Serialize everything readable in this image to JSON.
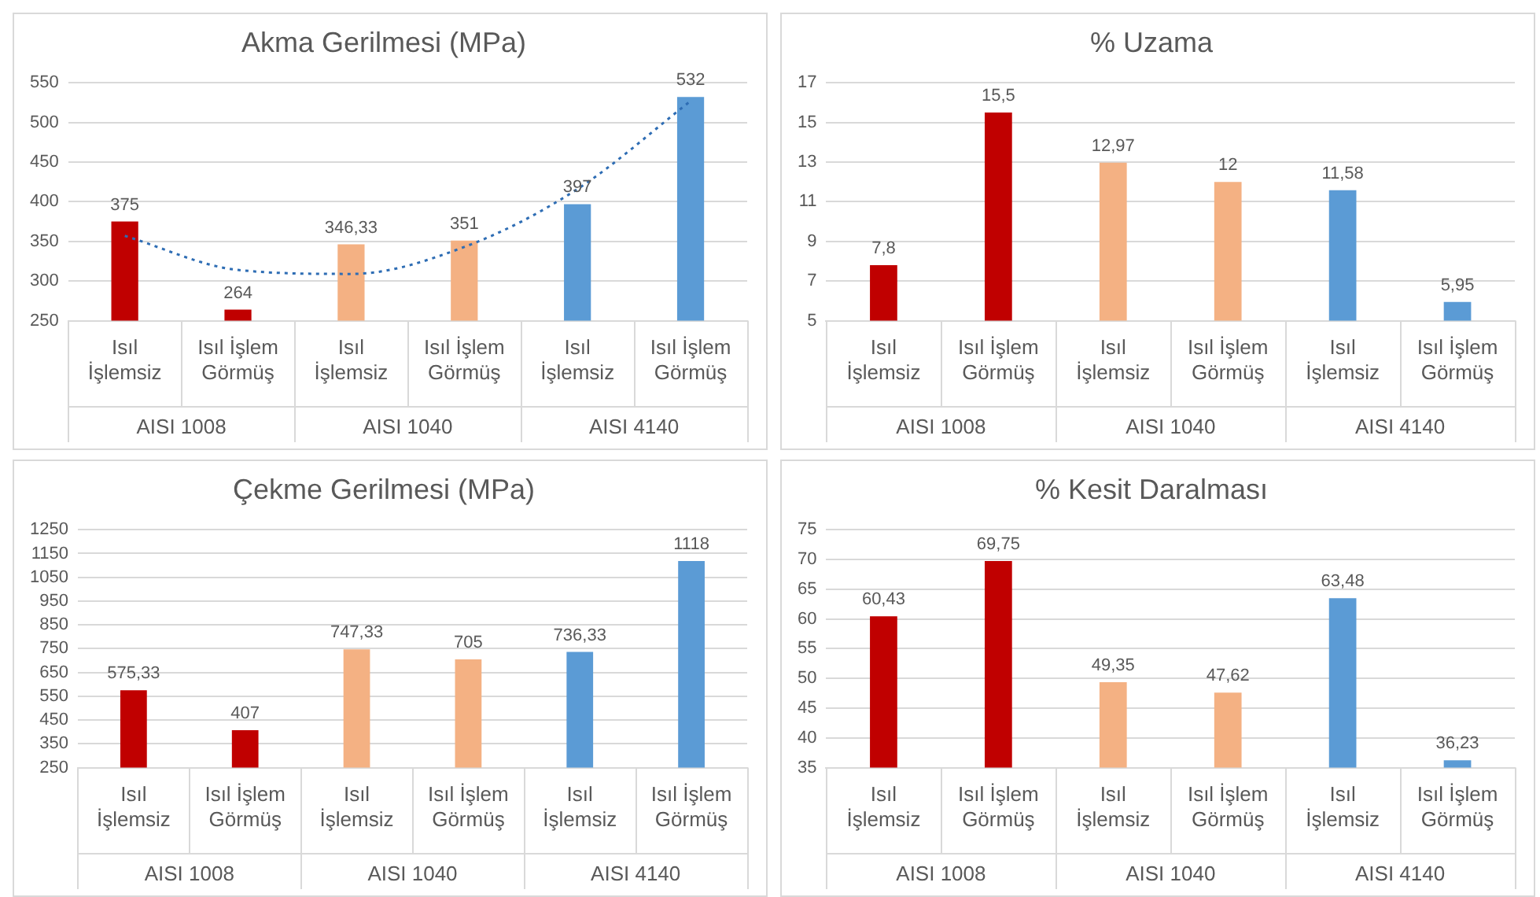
{
  "chart_data": [
    {
      "type": "bar",
      "title": "Akma Gerilmesi (MPa)",
      "categories": [
        "Isıl İşlemsiz",
        "Isıl İşlem Görmüş",
        "Isıl İşlemsiz",
        "Isıl İşlem Görmüş",
        "Isıl İşlemsiz",
        "Isıl İşlem Görmüş"
      ],
      "ylim": [
        250,
        550
      ],
      "yticks": [
        250,
        300,
        350,
        400,
        450,
        500,
        550
      ],
      "grid": "y",
      "annotations": [
        "AISI 1008",
        "AISI 1040",
        "AISI 4140"
      ],
      "series": [
        {
          "colors": [
            "#c00000",
            "#c00000",
            "#f4b183",
            "#f4b183",
            "#5b9bd5",
            "#5b9bd5"
          ],
          "values": [
            375,
            264,
            346.33,
            351,
            397,
            532
          ],
          "value_labels": [
            "375",
            "264",
            "346,33",
            "351",
            "397",
            "532"
          ]
        },
        {
          "type": "line",
          "color": "#2e6db4",
          "line_style": "dotted",
          "values": [
            357,
            314,
            309,
            343,
            416,
            527
          ]
        }
      ]
    },
    {
      "type": "bar",
      "title": "% Uzama",
      "categories": [
        "Isıl İşlemsiz",
        "Isıl İşlem Görmüş",
        "Isıl İşlemsiz",
        "Isıl İşlem Görmüş",
        "Isıl İşlemsiz",
        "Isıl İşlem Görmüş"
      ],
      "ylim": [
        5,
        17
      ],
      "yticks": [
        5,
        7,
        9,
        11,
        13,
        15,
        17
      ],
      "grid": "y",
      "annotations": [
        "AISI 1008",
        "AISI 1040",
        "AISI 4140"
      ],
      "series": [
        {
          "colors": [
            "#c00000",
            "#c00000",
            "#f4b183",
            "#f4b183",
            "#5b9bd5",
            "#5b9bd5"
          ],
          "values": [
            7.8,
            15.5,
            12.97,
            12,
            11.58,
            5.95
          ],
          "value_labels": [
            "7,8",
            "15,5",
            "12,97",
            "12",
            "11,58",
            "5,95"
          ]
        }
      ]
    },
    {
      "type": "bar",
      "title": "Çekme Gerilmesi (MPa)",
      "categories": [
        "Isıl İşlemsiz",
        "Isıl İşlem Görmüş",
        "Isıl İşlemsiz",
        "Isıl İşlem Görmüş",
        "Isıl İşlemsiz",
        "Isıl İşlem Görmüş"
      ],
      "ylim": [
        250,
        1250
      ],
      "yticks": [
        250,
        350,
        450,
        550,
        650,
        750,
        850,
        950,
        1050,
        1150,
        1250
      ],
      "grid": "y",
      "annotations": [
        "AISI 1008",
        "AISI 1040",
        "AISI 4140"
      ],
      "series": [
        {
          "colors": [
            "#c00000",
            "#c00000",
            "#f4b183",
            "#f4b183",
            "#5b9bd5",
            "#5b9bd5"
          ],
          "values": [
            575.33,
            407,
            747.33,
            705,
            736.33,
            1118
          ],
          "value_labels": [
            "575,33",
            "407",
            "747,33",
            "705",
            "736,33",
            "1118"
          ]
        }
      ]
    },
    {
      "type": "bar",
      "title": "% Kesit Daralması",
      "categories": [
        "Isıl İşlemsiz",
        "Isıl İşlem Görmüş",
        "Isıl İşlemsiz",
        "Isıl İşlem Görmüş",
        "Isıl İşlemsiz",
        "Isıl İşlem Görmüş"
      ],
      "ylim": [
        35,
        75
      ],
      "yticks": [
        35,
        40,
        45,
        50,
        55,
        60,
        65,
        70,
        75
      ],
      "grid": "y",
      "annotations": [
        "AISI 1008",
        "AISI 1040",
        "AISI 4140"
      ],
      "series": [
        {
          "colors": [
            "#c00000",
            "#c00000",
            "#f4b183",
            "#f4b183",
            "#5b9bd5",
            "#5b9bd5"
          ],
          "values": [
            60.43,
            69.75,
            49.35,
            47.62,
            63.48,
            36.23
          ],
          "value_labels": [
            "60,43",
            "69,75",
            "49,35",
            "47,62",
            "63,48",
            "36,23"
          ]
        }
      ]
    }
  ]
}
